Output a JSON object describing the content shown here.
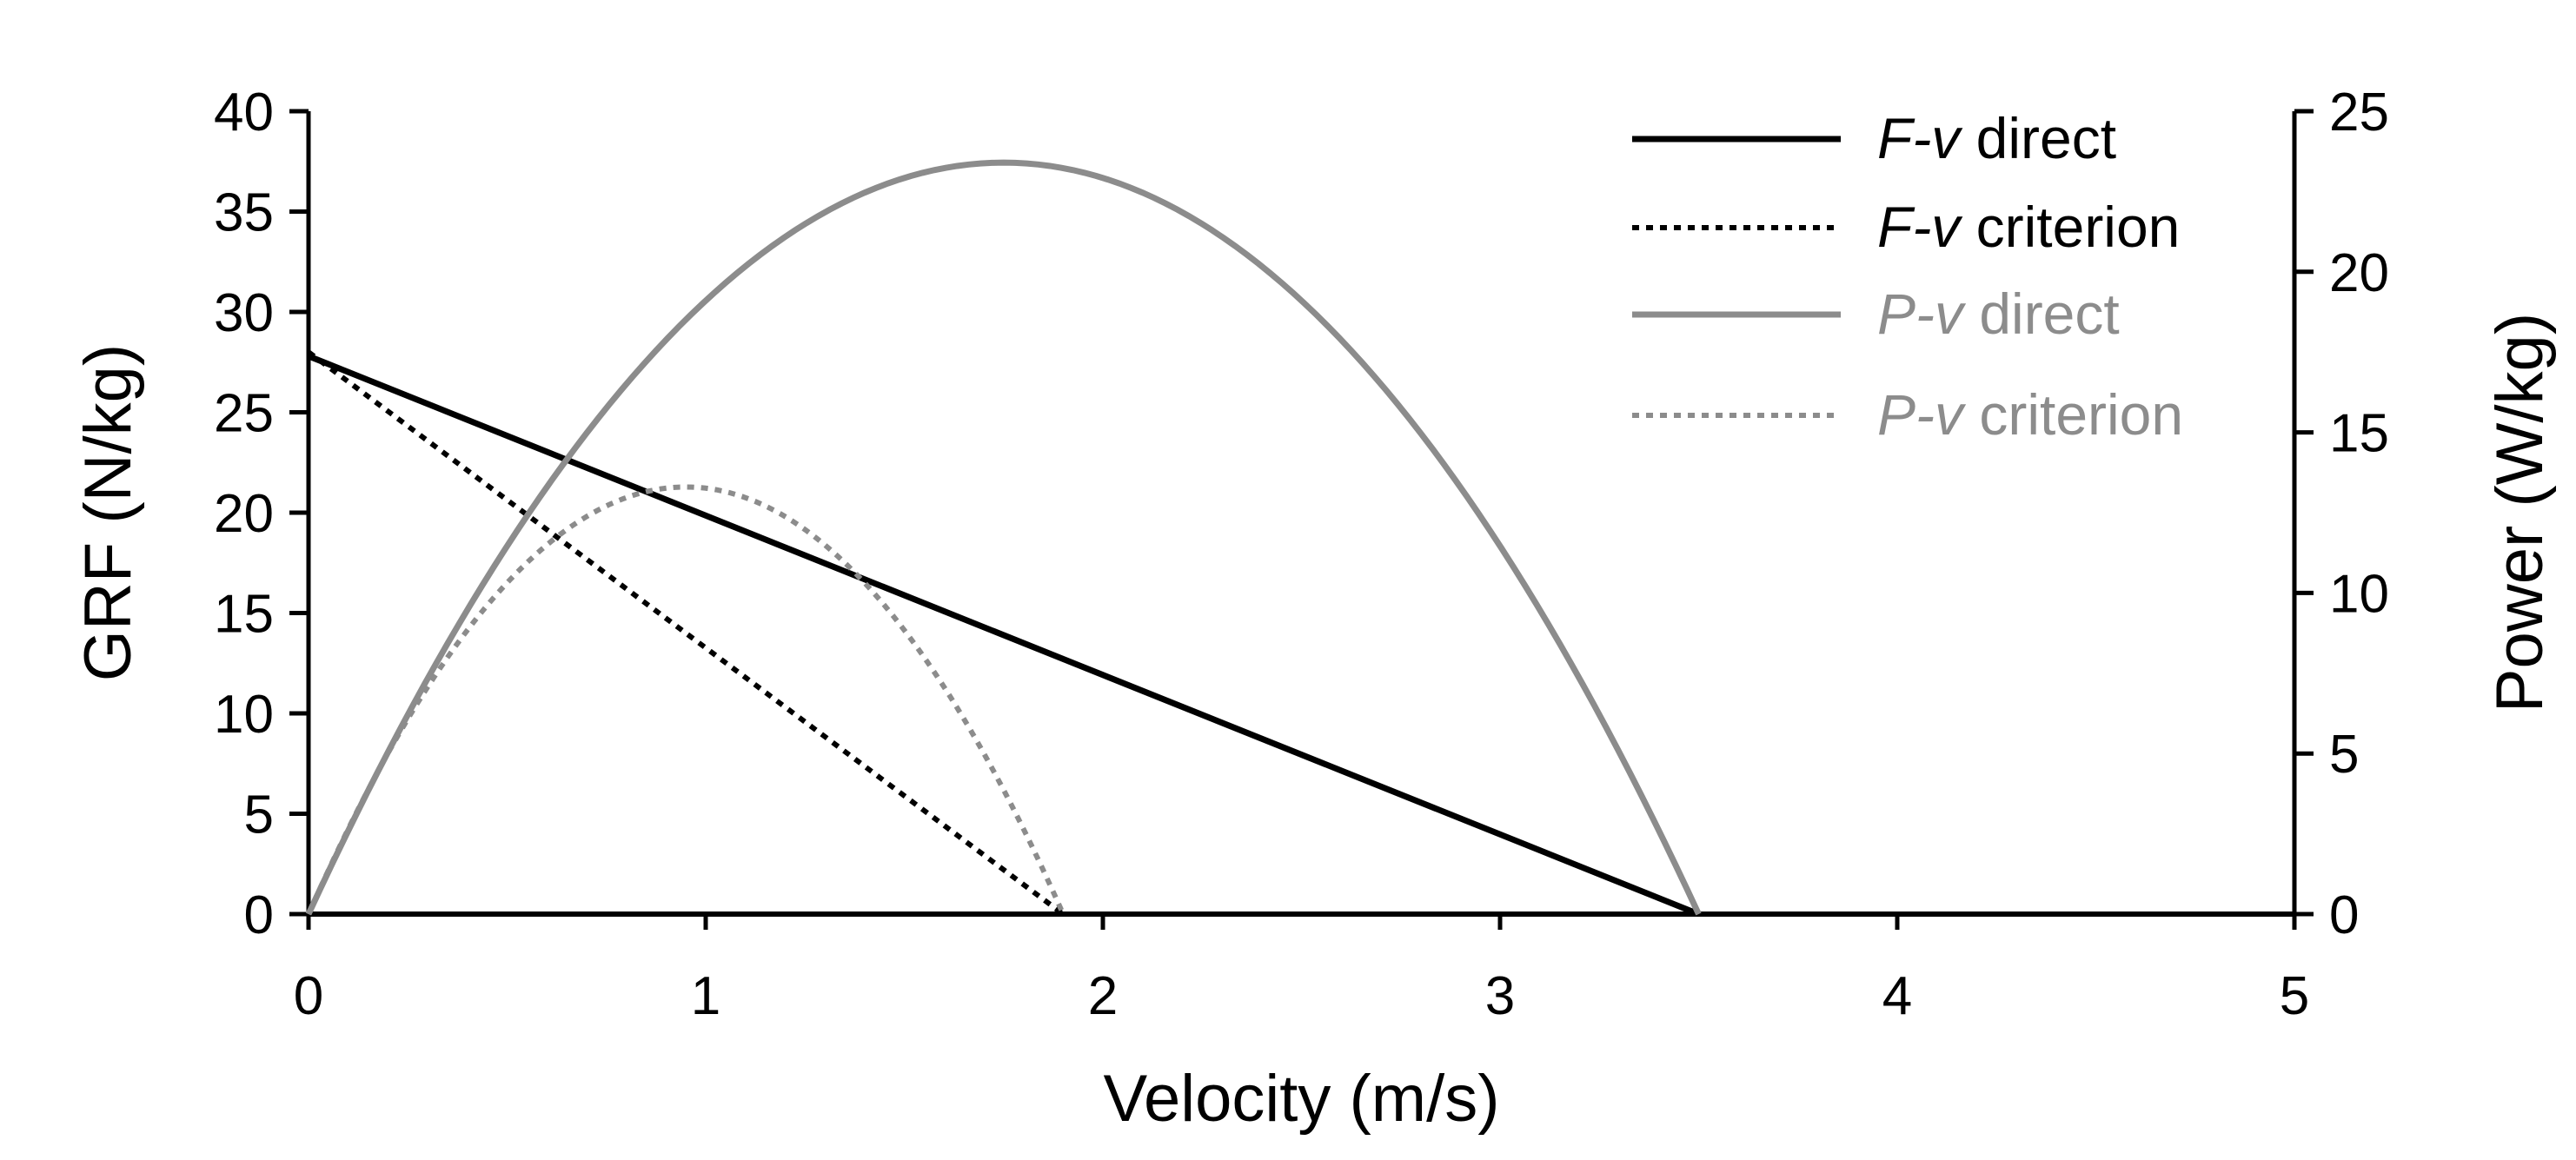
{
  "chart_data": {
    "type": "line",
    "xlabel": "Velocity (m/s)",
    "ylabel": "GRF (N/kg)",
    "y2label": "Power (W/kg)",
    "xlim": [
      0,
      5
    ],
    "ylim": [
      0,
      40
    ],
    "y2lim": [
      0,
      25
    ],
    "xticks": [
      0,
      1,
      2,
      3,
      4,
      5
    ],
    "yticks": [
      0,
      5,
      10,
      15,
      20,
      25,
      30,
      35,
      40
    ],
    "y2ticks": [
      0,
      5,
      10,
      15,
      20,
      25
    ],
    "grid": false,
    "legend_position": "top-right",
    "series": [
      {
        "name": "F-v direct",
        "name_prefix": "F-v",
        "name_suffix": "direct",
        "axis": "left",
        "color": "#000000",
        "dash": "solid",
        "x": [
          0,
          3.5
        ],
        "y": [
          27.8,
          0
        ]
      },
      {
        "name": "F-v criterion",
        "name_prefix": "F-v",
        "name_suffix": "criterion",
        "axis": "left",
        "color": "#000000",
        "dash": "dotted",
        "x": [
          0,
          1.9
        ],
        "y": [
          28,
          0
        ]
      },
      {
        "name": "P-v direct",
        "name_prefix": "P-v",
        "name_suffix": "direct",
        "axis": "right",
        "color": "#8c8c8c",
        "dash": "solid",
        "x": [
          0,
          0.35,
          0.7,
          1.05,
          1.4,
          1.75,
          2.1,
          2.45,
          2.8,
          3.15,
          3.5
        ],
        "y": [
          0,
          8.4,
          14.9,
          19.6,
          22.4,
          23.4,
          22.4,
          19.6,
          14.9,
          8.4,
          0
        ]
      },
      {
        "name": "P-v criterion",
        "name_prefix": "P-v",
        "name_suffix": "criterion",
        "axis": "right",
        "color": "#8c8c8c",
        "dash": "dotted",
        "x": [
          0,
          0.19,
          0.38,
          0.57,
          0.76,
          0.95,
          1.14,
          1.33,
          1.52,
          1.71,
          1.9
        ],
        "y": [
          0,
          4.8,
          8.5,
          11.2,
          12.8,
          13.3,
          12.8,
          11.2,
          8.5,
          4.8,
          0
        ]
      }
    ]
  }
}
